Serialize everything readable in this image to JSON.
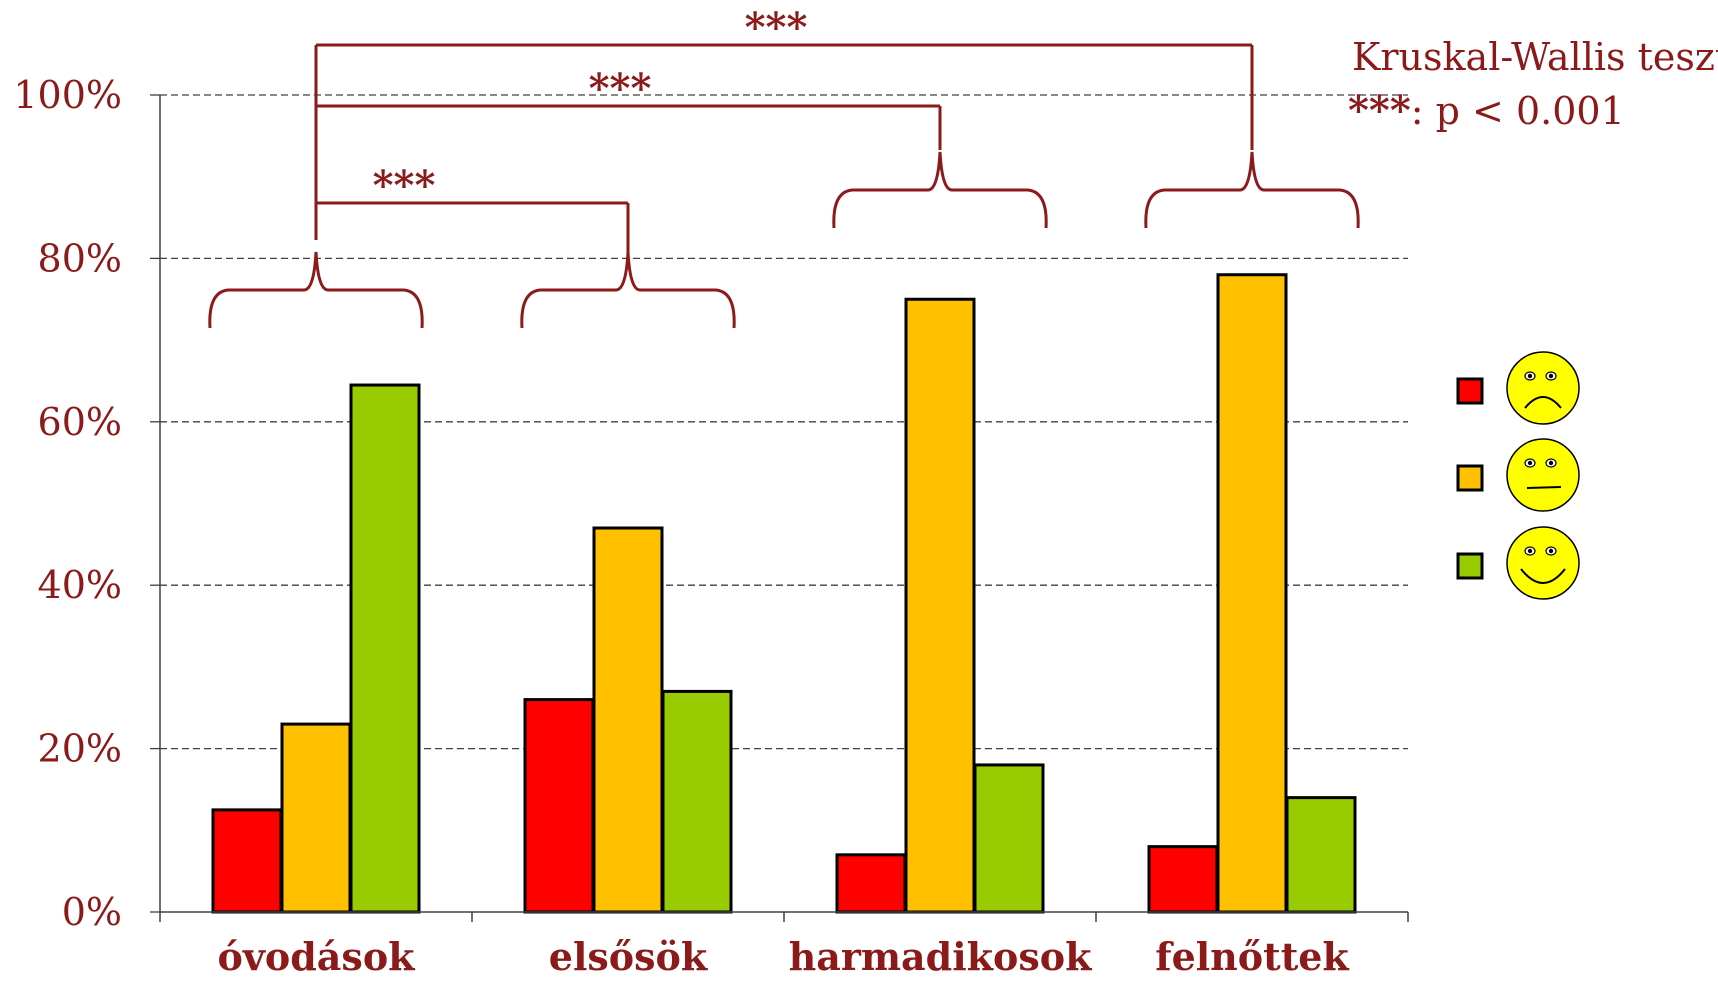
{
  "chart_data": {
    "type": "bar",
    "title": "",
    "xlabel": "",
    "ylabel": "",
    "categories": [
      "óvodások",
      "elsősök",
      "harmadikosok",
      "felnőttek"
    ],
    "series": [
      {
        "icon": "sad-face-icon",
        "color": "#ff0000",
        "values": [
          12.5,
          26,
          7,
          8
        ]
      },
      {
        "icon": "neutral-face-icon",
        "color": "#ffc000",
        "values": [
          23,
          47,
          75,
          78
        ]
      },
      {
        "icon": "happy-face-icon",
        "color": "#99cc00",
        "values": [
          64.5,
          27,
          18,
          14
        ]
      }
    ],
    "ylim": [
      0,
      100
    ],
    "yticks": [
      "0%",
      "20%",
      "40%",
      "60%",
      "80%",
      "100%"
    ],
    "ytick_values": [
      0,
      20,
      40,
      60,
      80,
      100
    ],
    "grid": true,
    "legend_position": "right",
    "significance": [
      {
        "from": "óvodások",
        "to": "elsősök",
        "label": "***"
      },
      {
        "from": "óvodások",
        "to": "harmadikosok",
        "label": "***"
      },
      {
        "from": "óvodások",
        "to": "felnőttek",
        "label": "***"
      }
    ],
    "annotation": {
      "test_name": "Kruskal-Wallis teszt",
      "stars": "***",
      "p_text": ": p < 0.001"
    }
  },
  "colors": {
    "accent": "#8b1a1a",
    "axis": "#404040"
  }
}
